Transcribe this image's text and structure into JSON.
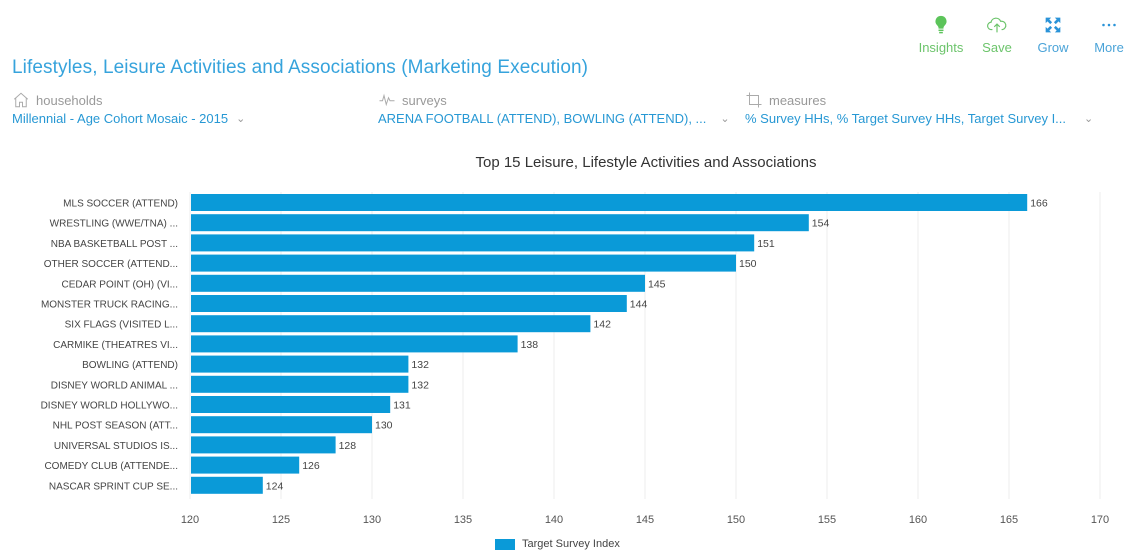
{
  "toolbar": {
    "insights": "Insights",
    "save": "Save",
    "grow": "Grow",
    "more": "More"
  },
  "page_title": "Lifestyles, Leisure Activities and Associations (Marketing Execution)",
  "filters": {
    "households": {
      "label": "households",
      "value": "Millennial - Age Cohort Mosaic - 2015",
      "icon": "home-icon"
    },
    "surveys": {
      "label": "surveys",
      "value": "ARENA FOOTBALL (ATTEND), BOWLING (ATTEND), ...",
      "icon": "pulse-icon"
    },
    "measures": {
      "label": "measures",
      "value": "% Survey HHs, % Target Survey HHs, Target Survey I...",
      "icon": "crop-icon"
    }
  },
  "colors": {
    "bar": "#0a9ad8",
    "title": "#36a3dc",
    "accent_green": "#6cc46b"
  },
  "chart_data": {
    "type": "bar",
    "orientation": "horizontal",
    "title": "Top 15 Leisure, Lifestyle Activities and Associations",
    "xlabel": "",
    "ylabel": "",
    "xlim": [
      120,
      170
    ],
    "x_ticks": [
      120,
      125,
      130,
      135,
      140,
      145,
      150,
      155,
      160,
      165,
      170
    ],
    "grid": true,
    "legend": {
      "position": "bottom-center",
      "entries": [
        "Target Survey Index"
      ]
    },
    "categories": [
      "MLS SOCCER (ATTEND)",
      "WRESTLING (WWE/TNA) ...",
      "NBA BASKETBALL POST ...",
      "OTHER SOCCER (ATTEND...",
      "CEDAR POINT (OH) (VI...",
      "MONSTER TRUCK RACING...",
      "SIX FLAGS (VISITED L...",
      "CARMIKE (THEATRES VI...",
      "BOWLING (ATTEND)",
      "DISNEY WORLD ANIMAL ...",
      "DISNEY WORLD HOLLYWO...",
      "NHL POST SEASON (ATT...",
      "UNIVERSAL STUDIOS IS...",
      "COMEDY CLUB (ATTENDE...",
      "NASCAR SPRINT CUP SE..."
    ],
    "series": [
      {
        "name": "Target Survey Index",
        "values": [
          166,
          154,
          151,
          150,
          145,
          144,
          142,
          138,
          132,
          132,
          131,
          130,
          128,
          126,
          124
        ]
      }
    ]
  }
}
